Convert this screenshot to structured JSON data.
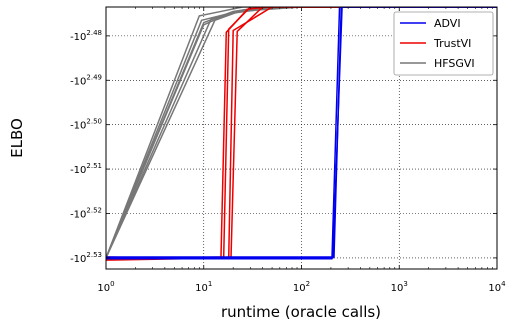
{
  "chart_data": {
    "type": "line",
    "title": "",
    "xlabel": "runtime (oracle calls)",
    "ylabel": "ELBO",
    "x_scale": "log10",
    "xlim": [
      1,
      10000
    ],
    "y_scale": "negative-log10",
    "ylim_exponent": [
      2.5325,
      2.4735
    ],
    "grid": true,
    "grid_style": "dotted",
    "legend_position": "top-right",
    "x_ticks": [
      {
        "label": "10",
        "exp": "0",
        "value": 1
      },
      {
        "label": "10",
        "exp": "1",
        "value": 10
      },
      {
        "label": "10",
        "exp": "2",
        "value": 100
      },
      {
        "label": "10",
        "exp": "3",
        "value": 1000
      },
      {
        "label": "10",
        "exp": "4",
        "value": 10000
      }
    ],
    "y_ticks": [
      {
        "label": "-10",
        "exp": "2.48",
        "value": 2.48
      },
      {
        "label": "-10",
        "exp": "2.49",
        "value": 2.49
      },
      {
        "label": "-10",
        "exp": "2.50",
        "value": 2.5
      },
      {
        "label": "-10",
        "exp": "2.51",
        "value": 2.51
      },
      {
        "label": "-10",
        "exp": "2.52",
        "value": 2.52
      },
      {
        "label": "-10",
        "exp": "2.53",
        "value": 2.53
      }
    ],
    "series": [
      {
        "name": "ADVI",
        "color": "#0000ee",
        "runs": [
          [
            [
              1,
              2.53
            ],
            [
              210,
              2.53
            ],
            [
              260,
              2.4735
            ],
            [
              10000,
              2.4735
            ]
          ],
          [
            [
              1,
              2.5302
            ],
            [
              205,
              2.5302
            ],
            [
              245,
              2.4735
            ],
            [
              10000,
              2.4735
            ]
          ],
          [
            [
              1,
              2.5298
            ],
            [
              215,
              2.5298
            ],
            [
              255,
              2.4735
            ],
            [
              10000,
              2.4735
            ]
          ]
        ]
      },
      {
        "name": "TrustVI",
        "color": "#ee0000",
        "runs": [
          [
            [
              1,
              2.5302
            ],
            [
              16,
              2.5298
            ],
            [
              18,
              2.4785
            ],
            [
              30,
              2.4735
            ],
            [
              10000,
              2.4735
            ]
          ],
          [
            [
              1,
              2.5305
            ],
            [
              19,
              2.53
            ],
            [
              22,
              2.479
            ],
            [
              40,
              2.4735
            ],
            [
              10000,
              2.4735
            ]
          ],
          [
            [
              1,
              2.53
            ],
            [
              15,
              2.53
            ],
            [
              17,
              2.4792
            ],
            [
              28,
              2.474
            ],
            [
              45,
              2.4735
            ],
            [
              10000,
              2.4735
            ]
          ],
          [
            [
              1,
              2.5298
            ],
            [
              18,
              2.5302
            ],
            [
              20,
              2.4788
            ],
            [
              50,
              2.4735
            ],
            [
              10000,
              2.4735
            ]
          ]
        ]
      },
      {
        "name": "HFSGVI",
        "color": "#777777",
        "runs": [
          [
            [
              1,
              2.53
            ],
            [
              9,
              2.4755
            ],
            [
              15,
              2.4745
            ],
            [
              25,
              2.4735
            ],
            [
              10000,
              2.4735
            ]
          ],
          [
            [
              1,
              2.53
            ],
            [
              10,
              2.477
            ],
            [
              20,
              2.4745
            ],
            [
              40,
              2.4735
            ],
            [
              10000,
              2.4735
            ]
          ],
          [
            [
              1,
              2.53
            ],
            [
              10,
              2.4775
            ],
            [
              18,
              2.475
            ],
            [
              60,
              2.4735
            ],
            [
              10000,
              2.4735
            ]
          ],
          [
            [
              1,
              2.53
            ],
            [
              12,
              2.476
            ],
            [
              30,
              2.474
            ],
            [
              80,
              2.4735
            ],
            [
              10000,
              2.4735
            ]
          ],
          [
            [
              1,
              2.53
            ],
            [
              9.5,
              2.4765
            ],
            [
              22,
              2.4745
            ],
            [
              100,
              2.4735
            ],
            [
              10000,
              2.4735
            ]
          ],
          [
            [
              1,
              2.53
            ],
            [
              13,
              2.4765
            ],
            [
              25,
              2.4742
            ],
            [
              70,
              2.4735
            ],
            [
              10000,
              2.4735
            ]
          ]
        ]
      }
    ]
  }
}
